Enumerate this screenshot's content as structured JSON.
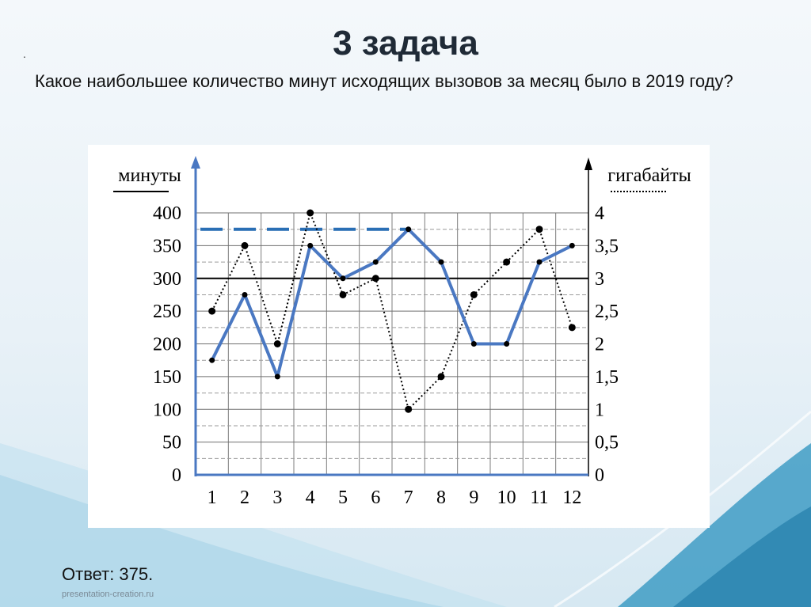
{
  "slide": {
    "title": "3 задача",
    "bullet": ".",
    "question": "Какое наибольшее количество минут исходящих вызовов за месяц было в 2019 году?",
    "answer": "Ответ: 375.",
    "watermark": "presentation-creation.ru"
  },
  "colors": {
    "minutes_line": "#4a78c2",
    "gigabytes_line": "#000000",
    "answer_marker": "#2a6fb5",
    "grid": "#888888"
  },
  "chart_data": {
    "type": "line",
    "left_axis_label": "минуты",
    "right_axis_label": "гигабайты",
    "categories": [
      "1",
      "2",
      "3",
      "4",
      "5",
      "6",
      "7",
      "8",
      "9",
      "10",
      "11",
      "12"
    ],
    "left_ticks": [
      "0",
      "50",
      "100",
      "150",
      "200",
      "250",
      "300",
      "350",
      "400"
    ],
    "right_ticks": [
      "0",
      "0,5",
      "1",
      "1,5",
      "2",
      "2,5",
      "3",
      "3,5",
      "4"
    ],
    "ylim_left": [
      0,
      400
    ],
    "ylim_right": [
      0,
      4
    ],
    "grid": true,
    "reference_line_minutes": 300,
    "answer_value": 375,
    "series": [
      {
        "axis": "left",
        "style": "solid",
        "values": [
          175,
          275,
          150,
          350,
          300,
          325,
          375,
          325,
          200,
          200,
          325,
          350
        ]
      },
      {
        "axis": "right",
        "style": "dotted",
        "values": [
          2.5,
          3.5,
          2.0,
          4.0,
          2.75,
          3.0,
          1.0,
          1.5,
          2.75,
          3.25,
          3.75,
          2.25
        ]
      }
    ]
  }
}
